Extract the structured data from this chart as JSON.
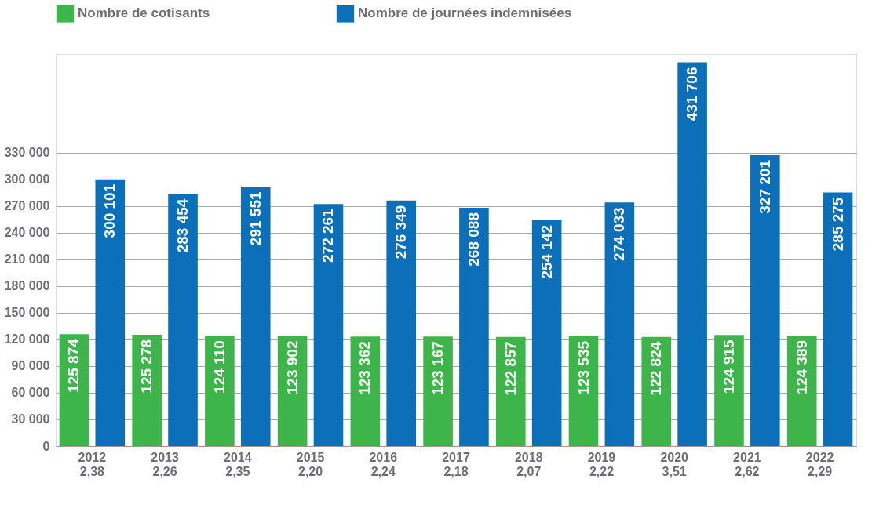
{
  "chart_data": {
    "type": "bar",
    "categories": [
      "2012\n2,38",
      "2013\n2,26",
      "2014\n2,35",
      "2015\n2,20",
      "2016\n2,24",
      "2017\n2,18",
      "2018\n2,07",
      "2019\n2,22",
      "2020\n3,51",
      "2021\n2,62",
      "2022\n2,29"
    ],
    "series": [
      {
        "name": "Nombre de cotisants",
        "color": "#3db54a",
        "values": [
          125874,
          125278,
          124110,
          123902,
          123362,
          123167,
          122857,
          123535,
          122824,
          124915,
          124389
        ],
        "value_labels": [
          "125 874",
          "125 278",
          "124 110",
          "123 902",
          "123 362",
          "123 167",
          "122 857",
          "123 535",
          "122 824",
          "124 915",
          "124 389"
        ]
      },
      {
        "name": "Nombre de journées indemnisées",
        "color": "#0b6fba",
        "values": [
          300101,
          283454,
          291551,
          272261,
          276349,
          268088,
          254142,
          274033,
          431706,
          327201,
          285275
        ],
        "value_labels": [
          "300 101",
          "283 454",
          "291 551",
          "272 261",
          "276 349",
          "268 088",
          "254 142",
          "274 033",
          "431 706",
          "327 201",
          "285 275"
        ]
      }
    ],
    "ylim": [
      0,
      441000
    ],
    "yticks": [
      0,
      {
        "value": 30000,
        "label": "30 000"
      },
      {
        "value": 60000,
        "label": "60 000"
      },
      {
        "value": 90000,
        "label": "90 000"
      },
      {
        "value": 120000,
        "label": "120 000"
      },
      {
        "value": 150000,
        "label": "150 000"
      },
      {
        "value": 180000,
        "label": "180 000"
      },
      {
        "value": 210000,
        "label": "210 000"
      },
      {
        "value": 240000,
        "label": "240 000"
      },
      {
        "value": 270000,
        "label": "270 000"
      },
      {
        "value": 300000,
        "label": "300 000"
      },
      {
        "value": 330000,
        "label": "330 000"
      }
    ],
    "grid": "y",
    "legend": "top"
  }
}
